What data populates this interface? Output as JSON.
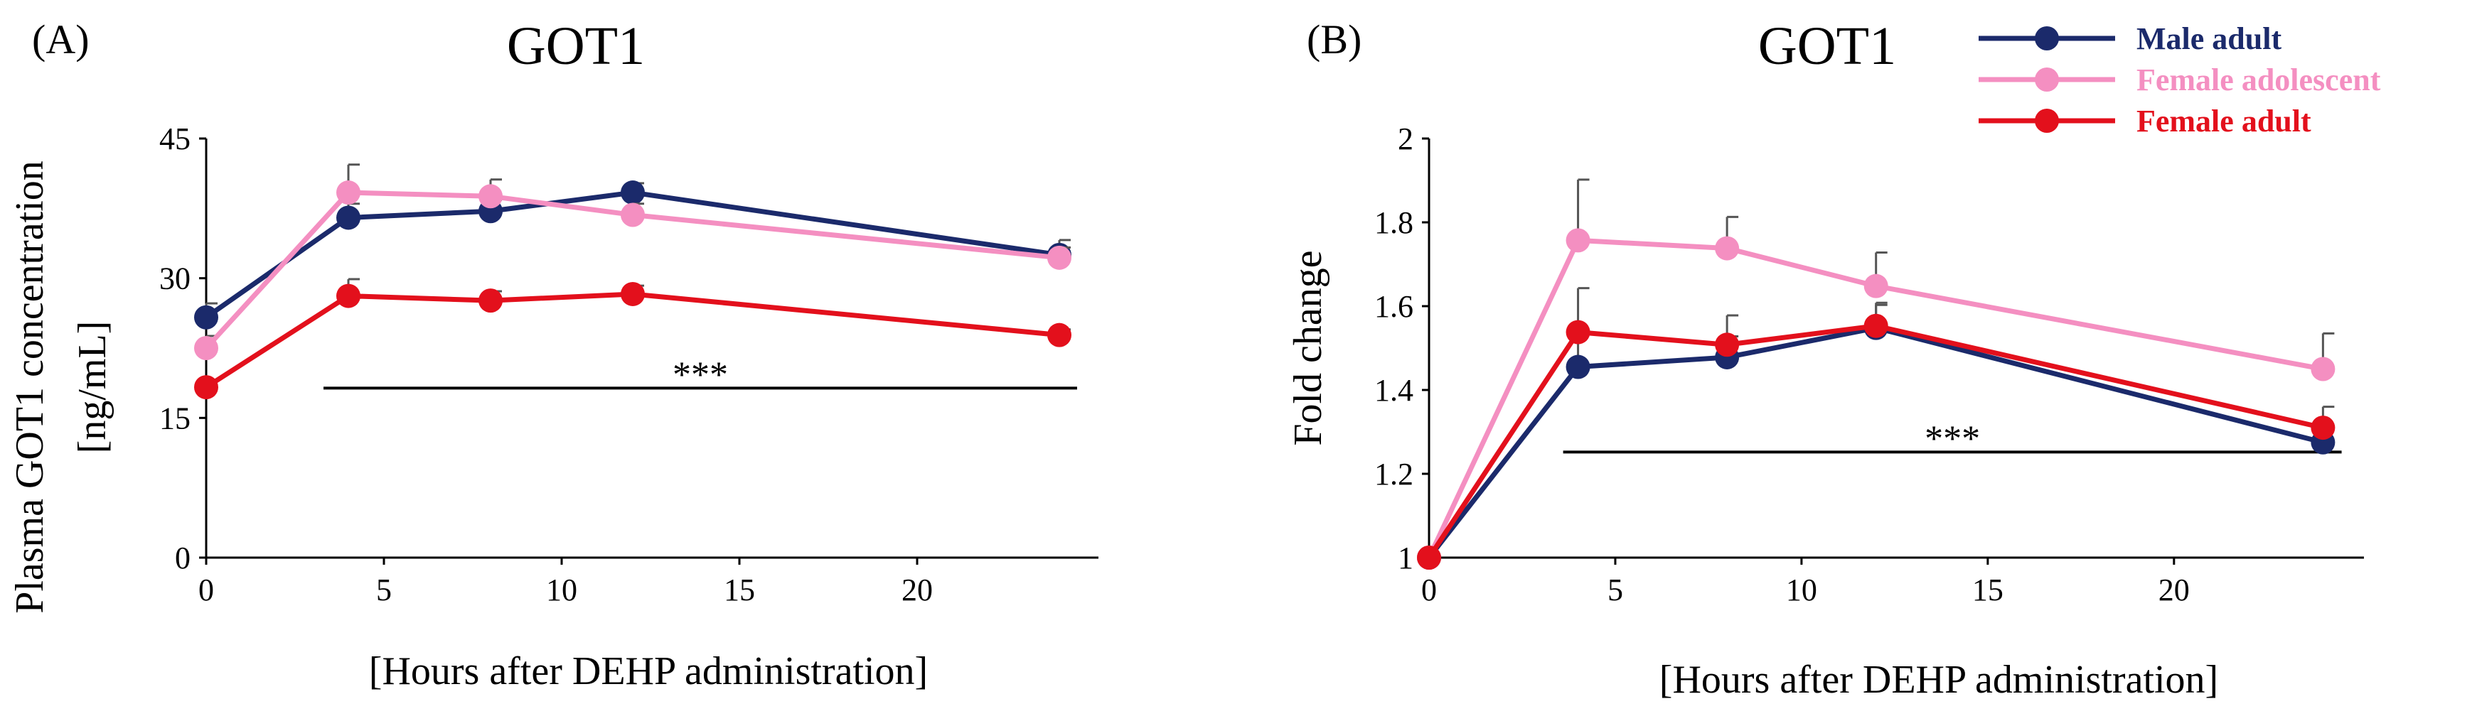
{
  "colors": {
    "male_adult": "#1b2a6b",
    "female_adolescent": "#f48fc1",
    "female_adult": "#e3101c",
    "axis": "#000000"
  },
  "legend": {
    "items": [
      {
        "name": "Male adult",
        "color_key": "male_adult"
      },
      {
        "name": "Female adolescent",
        "color_key": "female_adolescent"
      },
      {
        "name": "Female adult",
        "color_key": "female_adult"
      }
    ]
  },
  "chart_data": [
    {
      "panel_label": "(A)",
      "type": "line",
      "title": "GOT1",
      "xlabel": "[Hours after DEHP administration]",
      "ylabel": "Plasma GOT1 concentration",
      "ylabel_unit": "[ng/mL]",
      "xlim": [
        0,
        24
      ],
      "ylim": [
        0,
        45
      ],
      "x_ticks": [
        0,
        5,
        10,
        15,
        20
      ],
      "x_tick_labels": [
        "0",
        "5",
        "10",
        "15",
        "20"
      ],
      "y_ticks": [
        0,
        15,
        30,
        45
      ],
      "y_tick_labels": [
        "0",
        "15",
        "30",
        "45"
      ],
      "x": [
        0,
        4,
        8,
        12,
        24
      ],
      "series": [
        {
          "name": "Male adult",
          "values": [
            25.8,
            36.5,
            37.2,
            39.2,
            32.5
          ],
          "errors": [
            1.5,
            1.5,
            1.2,
            1.0,
            1.6
          ]
        },
        {
          "name": "Female adolescent",
          "values": [
            22.5,
            39.2,
            38.8,
            36.8,
            32.2
          ],
          "errors": [
            1.3,
            3.0,
            1.8,
            1.2,
            1.1
          ]
        },
        {
          "name": "Female adult",
          "values": [
            18.3,
            28.1,
            27.6,
            28.3,
            23.9
          ],
          "errors": [
            0.8,
            1.8,
            1.0,
            0.9,
            0.6
          ]
        }
      ],
      "significance": {
        "label": "***",
        "x_start": 3.3,
        "x_end": 24.5,
        "y": 18.2
      }
    },
    {
      "panel_label": "(B)",
      "type": "line",
      "title": "GOT1",
      "xlabel": "[Hours after DEHP administration]",
      "ylabel": "Fold change",
      "xlim": [
        0,
        24
      ],
      "ylim": [
        1,
        2
      ],
      "x_ticks": [
        0,
        5,
        10,
        15,
        20
      ],
      "x_tick_labels": [
        "0",
        "5",
        "10",
        "15",
        "20"
      ],
      "y_ticks": [
        1,
        1.2,
        1.4,
        1.6,
        1.8,
        2
      ],
      "y_tick_labels": [
        "1",
        "1.2",
        "1.4",
        "1.6",
        "1.8",
        "2"
      ],
      "x": [
        0,
        4,
        8,
        12,
        24
      ],
      "series": [
        {
          "name": "Male adult",
          "values": [
            1.0,
            1.455,
            1.478,
            1.548,
            1.275
          ],
          "errors": [
            0.0,
            0.09,
            0.05,
            0.06,
            0.04
          ]
        },
        {
          "name": "Female adolescent",
          "values": [
            1.0,
            1.757,
            1.738,
            1.648,
            1.45
          ],
          "errors": [
            0.0,
            0.145,
            0.075,
            0.08,
            0.085
          ]
        },
        {
          "name": "Female adult",
          "values": [
            1.0,
            1.538,
            1.508,
            1.553,
            1.31
          ],
          "errors": [
            0.0,
            0.105,
            0.07,
            0.05,
            0.05
          ]
        }
      ],
      "significance": {
        "label": "***",
        "x_start": 3.6,
        "x_end": 24.5,
        "y": 1.252
      }
    }
  ]
}
